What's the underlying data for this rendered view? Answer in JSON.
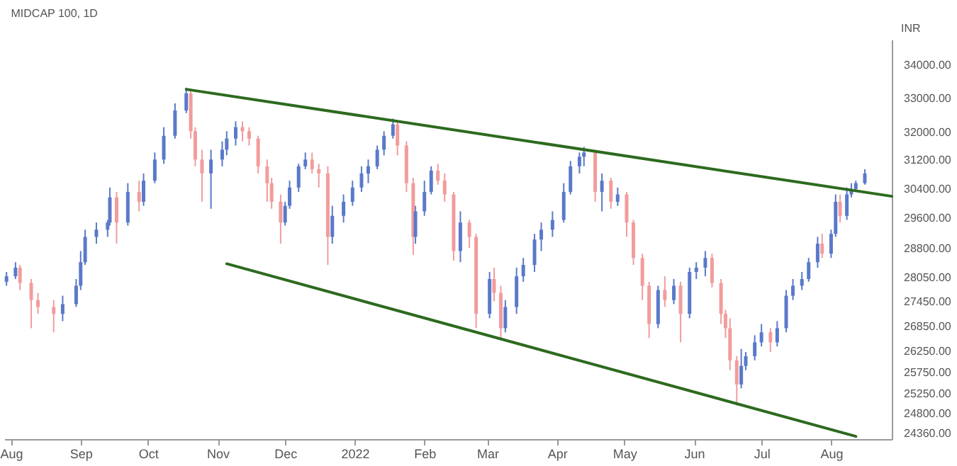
{
  "chart_data": {
    "type": "candlestick",
    "title": "MIDCAP 100, 1D",
    "ylabel": "INR",
    "log": true,
    "ylim": [
      24240,
      34800
    ],
    "yticks": [
      {
        "value": 24360,
        "label": "24360.00"
      },
      {
        "value": 24800,
        "label": "24800.00"
      },
      {
        "value": 25250,
        "label": "25250.00"
      },
      {
        "value": 25750,
        "label": "25750.00"
      },
      {
        "value": 26250,
        "label": "26250.00"
      },
      {
        "value": 26850,
        "label": "26850.00"
      },
      {
        "value": 27450,
        "label": "27450.00"
      },
      {
        "value": 28050,
        "label": "28050.00"
      },
      {
        "value": 28800,
        "label": "28800.00"
      },
      {
        "value": 29600,
        "label": "29600.00"
      },
      {
        "value": 30400,
        "label": "30400.00"
      },
      {
        "value": 31200,
        "label": "31200.00"
      },
      {
        "value": 32000,
        "label": "32000.00"
      },
      {
        "value": 33000,
        "label": "33000.00"
      },
      {
        "value": 34000,
        "label": "34000.00"
      }
    ],
    "xlim": [
      "2021-07-29",
      "2022-08-28"
    ],
    "xticks": [
      {
        "value": "2021-08-01",
        "label": "Aug"
      },
      {
        "value": "2021-09-01",
        "label": "Sep"
      },
      {
        "value": "2021-10-01",
        "label": "Oct"
      },
      {
        "value": "2021-11-01",
        "label": "Nov"
      },
      {
        "value": "2021-12-01",
        "label": "Dec"
      },
      {
        "value": "2022-01-01",
        "label": "2022"
      },
      {
        "value": "2022-02-01",
        "label": "Feb"
      },
      {
        "value": "2022-03-01",
        "label": "Mar"
      },
      {
        "value": "2022-04-01",
        "label": "Apr"
      },
      {
        "value": "2022-05-01",
        "label": "May"
      },
      {
        "value": "2022-06-01",
        "label": "Jun"
      },
      {
        "value": "2022-07-01",
        "label": "Jul"
      },
      {
        "value": "2022-08-01",
        "label": "Aug"
      }
    ],
    "x": [
      "2021-07-30",
      "2021-08-03",
      "2021-08-05",
      "2021-08-10",
      "2021-08-13",
      "2021-08-20",
      "2021-08-24",
      "2021-08-30",
      "2021-09-01",
      "2021-09-03",
      "2021-09-08",
      "2021-09-13",
      "2021-09-14",
      "2021-09-17",
      "2021-09-22",
      "2021-09-27",
      "2021-09-29",
      "2021-10-04",
      "2021-10-08",
      "2021-10-13",
      "2021-10-18",
      "2021-10-20",
      "2021-10-22",
      "2021-10-25",
      "2021-10-29",
      "2021-11-03",
      "2021-11-05",
      "2021-11-09",
      "2021-11-12",
      "2021-11-15",
      "2021-11-19",
      "2021-11-23",
      "2021-11-25",
      "2021-11-29",
      "2021-12-01",
      "2021-12-03",
      "2021-12-07",
      "2021-12-10",
      "2021-12-13",
      "2021-12-16",
      "2021-12-20",
      "2021-12-22",
      "2021-12-27",
      "2021-12-31",
      "2022-01-04",
      "2022-01-07",
      "2022-01-11",
      "2022-01-14",
      "2022-01-18",
      "2022-01-20",
      "2022-01-24",
      "2022-01-27",
      "2022-01-28",
      "2022-02-01",
      "2022-02-04",
      "2022-02-07",
      "2022-02-10",
      "2022-02-14",
      "2022-02-17",
      "2022-02-21",
      "2022-02-24",
      "2022-03-02",
      "2022-03-04",
      "2022-03-07",
      "2022-03-09",
      "2022-03-14",
      "2022-03-17",
      "2022-03-22",
      "2022-03-25",
      "2022-03-30",
      "2022-04-04",
      "2022-04-07",
      "2022-04-11",
      "2022-04-13",
      "2022-04-18",
      "2022-04-21",
      "2022-04-25",
      "2022-04-28",
      "2022-05-02",
      "2022-05-05",
      "2022-05-09",
      "2022-05-12",
      "2022-05-16",
      "2022-05-19",
      "2022-05-23",
      "2022-05-26",
      "2022-05-30",
      "2022-06-02",
      "2022-06-06",
      "2022-06-09",
      "2022-06-13",
      "2022-06-15",
      "2022-06-17",
      "2022-06-20",
      "2022-06-22",
      "2022-06-24",
      "2022-06-28",
      "2022-07-01",
      "2022-07-05",
      "2022-07-08",
      "2022-07-12",
      "2022-07-15",
      "2022-07-19",
      "2022-07-22",
      "2022-07-26",
      "2022-07-28",
      "2022-08-01",
      "2022-08-03",
      "2022-08-05",
      "2022-08-08",
      "2022-08-10",
      "2022-08-12",
      "2022-08-16"
    ],
    "ohlc": [
      [
        27950,
        28200,
        27850,
        28090
      ],
      [
        28090,
        28450,
        28020,
        28310
      ],
      [
        28310,
        28380,
        27740,
        27920
      ],
      [
        27920,
        28020,
        26800,
        27490
      ],
      [
        27490,
        27670,
        27150,
        27320
      ],
      [
        27320,
        27490,
        26700,
        27150
      ],
      [
        27150,
        27600,
        26970,
        27390
      ],
      [
        27390,
        28020,
        27320,
        27850
      ],
      [
        27850,
        28740,
        27740,
        28450
      ],
      [
        28450,
        29300,
        28380,
        29110
      ],
      [
        29110,
        29490,
        28930,
        29300
      ],
      [
        29300,
        29560,
        29110,
        29490
      ],
      [
        29490,
        30440,
        29410,
        30170
      ],
      [
        30170,
        30320,
        28930,
        29490
      ],
      [
        29490,
        30560,
        29410,
        30320
      ],
      [
        30320,
        30630,
        29790,
        30050
      ],
      [
        30050,
        30830,
        29940,
        30630
      ],
      [
        30630,
        31420,
        30560,
        31220
      ],
      [
        31220,
        32150,
        31100,
        31900
      ],
      [
        31900,
        32850,
        31820,
        32640
      ],
      [
        32640,
        33320,
        32560,
        33150
      ],
      [
        33150,
        33230,
        31820,
        32030
      ],
      [
        32030,
        32150,
        31030,
        31220
      ],
      [
        31220,
        31500,
        30050,
        30830
      ],
      [
        30830,
        31500,
        29860,
        31220
      ],
      [
        31220,
        31740,
        31030,
        31500
      ],
      [
        31500,
        32030,
        31340,
        31820
      ],
      [
        31820,
        32320,
        31620,
        32150
      ],
      [
        32150,
        32320,
        31740,
        32030
      ],
      [
        32030,
        32150,
        31620,
        31820
      ],
      [
        31820,
        31900,
        30830,
        31030
      ],
      [
        31030,
        31220,
        30050,
        30560
      ],
      [
        30560,
        30710,
        29860,
        30050
      ],
      [
        30050,
        30250,
        28930,
        29490
      ],
      [
        29490,
        30050,
        29410,
        29940
      ],
      [
        29940,
        30630,
        29860,
        30440
      ],
      [
        30440,
        31100,
        30320,
        31030
      ],
      [
        31030,
        31420,
        30950,
        31220
      ],
      [
        31220,
        31420,
        30830,
        30950
      ],
      [
        30950,
        31100,
        30440,
        30830
      ],
      [
        30830,
        31030,
        28380,
        29110
      ],
      [
        29110,
        29940,
        28930,
        29670
      ],
      [
        29670,
        30250,
        29490,
        30050
      ],
      [
        30050,
        30630,
        29940,
        30440
      ],
      [
        30440,
        31030,
        30320,
        30830
      ],
      [
        30830,
        31220,
        30560,
        31030
      ],
      [
        31030,
        31620,
        30950,
        31500
      ],
      [
        31500,
        32030,
        31340,
        31900
      ],
      [
        31900,
        32400,
        31820,
        32230
      ],
      [
        32230,
        32320,
        31340,
        31620
      ],
      [
        31620,
        31740,
        30320,
        30560
      ],
      [
        30560,
        30710,
        28640,
        29110
      ],
      [
        29110,
        29940,
        28930,
        29790
      ],
      [
        29790,
        30630,
        29670,
        30320
      ],
      [
        30320,
        31030,
        30250,
        30910
      ],
      [
        30910,
        31100,
        30520,
        30630
      ],
      [
        30630,
        30830,
        30050,
        30250
      ],
      [
        30250,
        30320,
        28490,
        28740
      ],
      [
        28740,
        29790,
        28450,
        29490
      ],
      [
        29490,
        29560,
        28820,
        29110
      ],
      [
        29110,
        29190,
        26800,
        27150
      ],
      [
        27150,
        28200,
        27040,
        28020
      ],
      [
        28020,
        28310,
        27460,
        27670
      ],
      [
        27670,
        27850,
        26560,
        26800
      ],
      [
        26800,
        27490,
        26700,
        27320
      ],
      [
        27320,
        28310,
        27150,
        28090
      ],
      [
        28090,
        28560,
        27950,
        28380
      ],
      [
        28380,
        29190,
        28200,
        29040
      ],
      [
        29040,
        29490,
        28740,
        29300
      ],
      [
        29300,
        29790,
        29110,
        29560
      ],
      [
        29560,
        30560,
        29490,
        30320
      ],
      [
        30320,
        31180,
        30250,
        31030
      ],
      [
        31030,
        31420,
        30830,
        31300
      ],
      [
        31300,
        31580,
        31030,
        31420
      ],
      [
        31420,
        31500,
        30050,
        30320
      ],
      [
        30320,
        30830,
        29790,
        30630
      ],
      [
        30630,
        30710,
        29860,
        30050
      ],
      [
        30050,
        30440,
        29940,
        30250
      ],
      [
        30250,
        30320,
        29110,
        29490
      ],
      [
        29490,
        29560,
        28380,
        28560
      ],
      [
        28560,
        28670,
        27490,
        27850
      ],
      [
        27850,
        27950,
        26560,
        26900
      ],
      [
        26900,
        27850,
        26800,
        27740
      ],
      [
        27740,
        28090,
        27320,
        27490
      ],
      [
        27490,
        28020,
        27390,
        27850
      ],
      [
        27850,
        27950,
        26460,
        27150
      ],
      [
        27150,
        28310,
        27040,
        28200
      ],
      [
        28200,
        28450,
        28020,
        28310
      ],
      [
        28310,
        28740,
        28090,
        28560
      ],
      [
        28560,
        28670,
        27810,
        27920
      ],
      [
        27920,
        28020,
        26900,
        27150
      ],
      [
        27150,
        27250,
        26560,
        26800
      ],
      [
        26800,
        27040,
        25800,
        26030
      ],
      [
        26030,
        26130,
        24990,
        25470
      ],
      [
        25470,
        26300,
        25380,
        25900
      ],
      [
        25900,
        26230,
        25800,
        26130
      ],
      [
        26130,
        26630,
        26030,
        26460
      ],
      [
        26460,
        26900,
        26360,
        26700
      ],
      [
        26700,
        26800,
        26230,
        26460
      ],
      [
        26460,
        26970,
        26360,
        26800
      ],
      [
        26800,
        27740,
        26700,
        27600
      ],
      [
        27600,
        28020,
        27490,
        27850
      ],
      [
        27850,
        28200,
        27740,
        28020
      ],
      [
        28020,
        28560,
        27950,
        28450
      ],
      [
        28450,
        29110,
        28310,
        28930
      ],
      [
        28930,
        29190,
        28560,
        28670
      ],
      [
        28670,
        29300,
        28560,
        29190
      ],
      [
        29190,
        30250,
        29110,
        30050
      ],
      [
        30050,
        30250,
        29490,
        29670
      ],
      [
        29670,
        30440,
        29560,
        30250
      ],
      [
        30250,
        30560,
        30170,
        30400
      ],
      [
        30400,
        30630,
        30320,
        30560
      ],
      [
        30560,
        30950,
        30520,
        30830
      ]
    ],
    "series": [
      {
        "type": "line",
        "color": "#2d6a1f",
        "x": [
          "2021-10-18",
          "2022-08-28"
        ],
        "values": [
          33270,
          30200
        ]
      },
      {
        "type": "line",
        "color": "#2d6a1f",
        "x": [
          "2021-11-05",
          "2022-08-12"
        ],
        "values": [
          28410,
          24300
        ]
      }
    ]
  }
}
